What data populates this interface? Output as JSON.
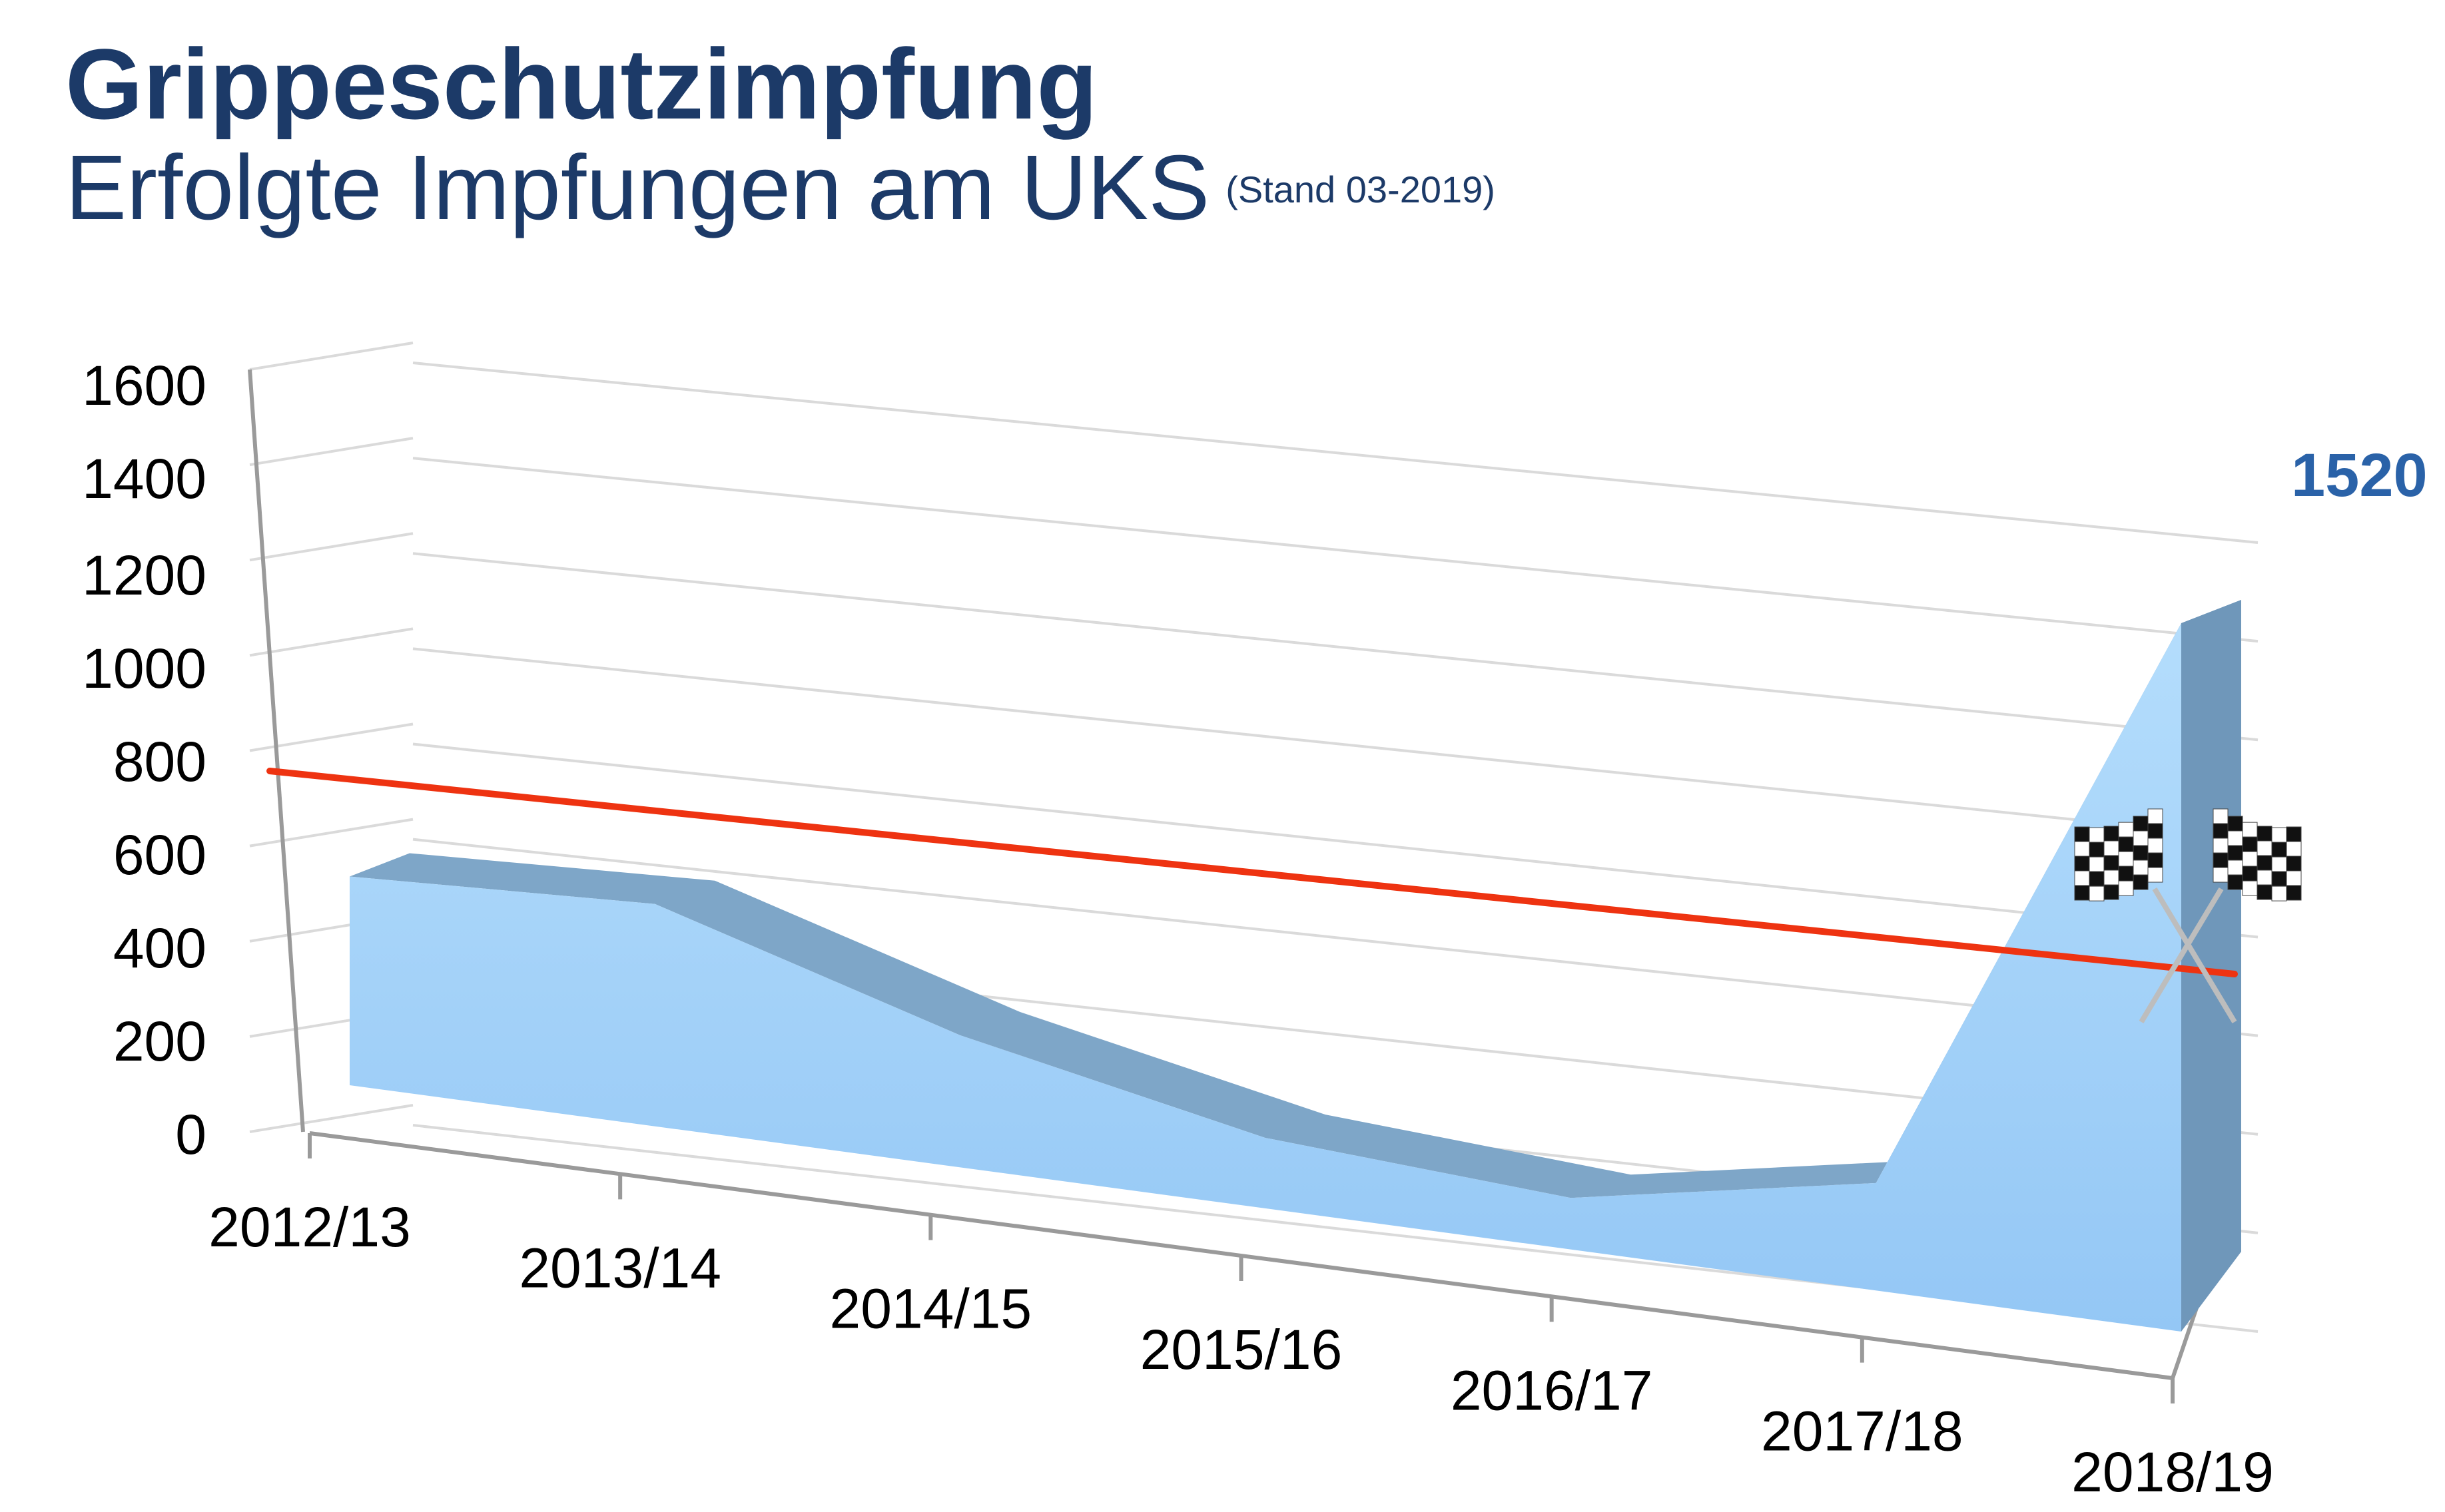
{
  "header": {
    "title": "Grippeschutzimpfung",
    "subtitle": "Erfolgte Impfungen am UKS",
    "subtitle_note": "(Stand 03-2019)"
  },
  "chart_data": {
    "type": "area",
    "categories": [
      "2012/13",
      "2013/14",
      "2014/15",
      "2015/16",
      "2016/17",
      "2017/18",
      "2018/19"
    ],
    "values": [
      440,
      470,
      280,
      150,
      110,
      230,
      1520
    ],
    "ylim": [
      0,
      1600
    ],
    "yticks": [
      0,
      200,
      400,
      600,
      800,
      1000,
      1200,
      1400,
      1600
    ],
    "grid": true,
    "value_label": "1520",
    "target_line": {
      "start": 750,
      "end": 350
    },
    "colors": {
      "area": "#9ccff8",
      "area_top": "#7ea6c8",
      "area_side": "#6f97ba",
      "target_line": "#ee3311",
      "grid": "#dadada",
      "axis": "#9a9a9a"
    },
    "icon": "checkered-flags-icon"
  }
}
